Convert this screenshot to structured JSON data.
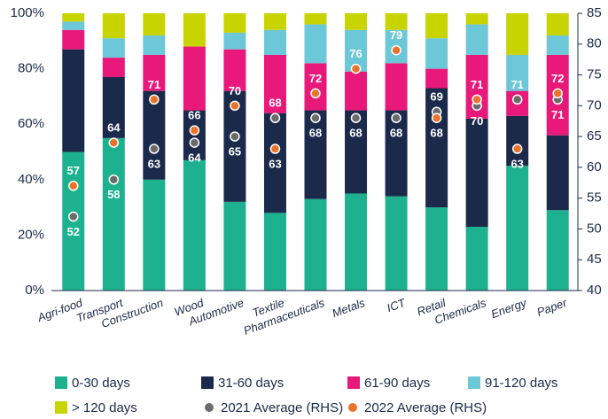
{
  "chart_data": {
    "type": "bar",
    "stacked": true,
    "categories": [
      "Agri-food",
      "Transport",
      "Construction",
      "Wood",
      "Automotive",
      "Textile",
      "Pharmaceuticals",
      "Metals",
      "ICT",
      "Retail",
      "Chemicals",
      "Energy",
      "Paper"
    ],
    "series": [
      {
        "name": "0-30 days",
        "color": "#1db18f",
        "values": [
          50,
          55,
          40,
          47,
          32,
          28,
          33,
          35,
          34,
          30,
          23,
          45,
          29
        ]
      },
      {
        "name": "31-60 days",
        "color": "#1b2a4a",
        "values": [
          37,
          22,
          32,
          18,
          40,
          36,
          32,
          30,
          31,
          43,
          39,
          18,
          27
        ]
      },
      {
        "name": "61-90 days",
        "color": "#e8197a",
        "values": [
          7,
          7,
          13,
          23,
          15,
          21,
          17,
          14,
          17,
          7,
          23,
          9,
          29
        ]
      },
      {
        "name": "91-120 days",
        "color": "#6cc7d8",
        "values": [
          3,
          7,
          7,
          0,
          6,
          9,
          14,
          15,
          12,
          11,
          11,
          13,
          7
        ]
      },
      {
        "name": "> 120 days",
        "color": "#c8d400",
        "values": [
          3,
          9,
          8,
          12,
          7,
          6,
          4,
          6,
          6,
          9,
          4,
          15,
          8
        ]
      },
      {
        "name": "2021 Average (RHS)",
        "color": "#6b6b6b",
        "type": "scatter",
        "axis": "y2",
        "values": [
          52,
          58,
          63,
          64,
          65,
          68,
          68,
          68,
          68,
          69,
          70,
          71,
          71
        ]
      },
      {
        "name": "2022 Average (RHS)",
        "color": "#e8742a",
        "type": "scatter",
        "axis": "y2",
        "values": [
          57,
          64,
          71,
          66,
          70,
          63,
          72,
          76,
          79,
          68,
          71,
          63,
          72
        ]
      }
    ],
    "ylim": [
      0,
      100
    ],
    "yticks": [
      {
        "value": 0,
        "label": "0%"
      },
      {
        "value": 20,
        "label": "20%"
      },
      {
        "value": 40,
        "label": "40%"
      },
      {
        "value": 60,
        "label": "60%"
      },
      {
        "value": 80,
        "label": "80%"
      },
      {
        "value": 100,
        "label": "100%"
      }
    ],
    "y2lim": [
      40,
      85
    ],
    "y2ticks": [
      40,
      45,
      50,
      55,
      60,
      65,
      70,
      75,
      80,
      85
    ],
    "legend": "bottom"
  }
}
